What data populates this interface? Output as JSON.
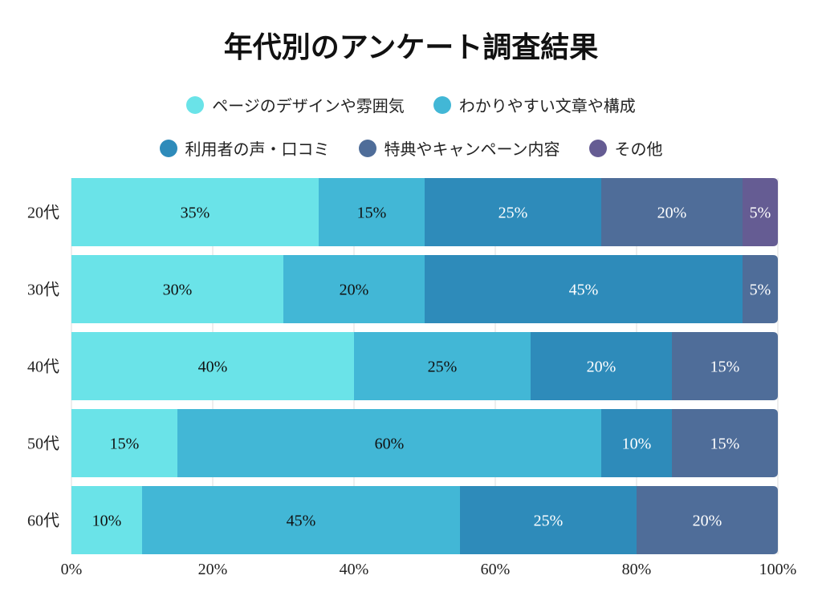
{
  "chart_data": {
    "type": "bar",
    "orientation": "horizontal",
    "stacked": true,
    "title": "年代別のアンケート調査結果",
    "categories": [
      "20代",
      "30代",
      "40代",
      "50代",
      "60代"
    ],
    "series": [
      {
        "name": "ページのデザインや雰囲気",
        "color": "#6ae3e8",
        "values": [
          35,
          30,
          40,
          15,
          10
        ]
      },
      {
        "name": "わかりやすい文章や構成",
        "color": "#42b7d6",
        "values": [
          15,
          20,
          25,
          60,
          45
        ]
      },
      {
        "name": "利用者の声・口コミ",
        "color": "#2e8bba",
        "values": [
          25,
          45,
          20,
          10,
          25
        ]
      },
      {
        "name": "特典やキャンペーン内容",
        "color": "#4f6d99",
        "values": [
          20,
          5,
          15,
          15,
          20
        ]
      },
      {
        "name": "その他",
        "color": "#655c93",
        "values": [
          5,
          0,
          0,
          0,
          0
        ]
      }
    ],
    "xlim": [
      0,
      100
    ],
    "xticks": [
      "0%",
      "20%",
      "40%",
      "60%",
      "80%",
      "100%"
    ],
    "value_suffix": "%",
    "grid": true,
    "legend": "top"
  }
}
